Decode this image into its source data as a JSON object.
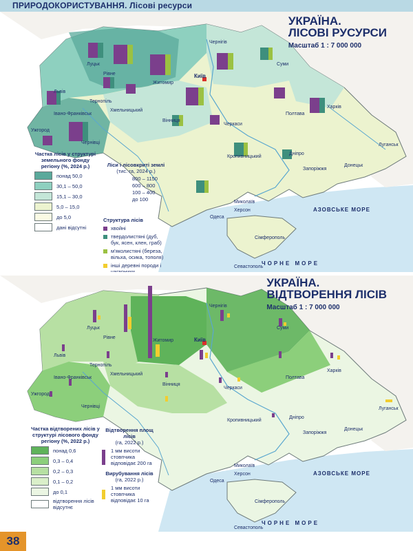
{
  "header": {
    "title": "ПРИРОДОКОРИСТУВАННЯ. Лісові ресурси"
  },
  "page_number": "38",
  "colors": {
    "forest_dark": "#5aa99b",
    "forest_mid": "#8ed0bf",
    "forest_light": "#c4e6d8",
    "forest_pale": "#ecf3cf",
    "forest_min": "#fbfbe4",
    "sea": "#cfe7f3",
    "regen_dark": "#5fb35a",
    "regen_mid": "#8ccf7b",
    "regen_light": "#b7e0a3",
    "regen_pale": "#daefc9",
    "regen_min": "#ebf6e3",
    "purple": "#7b3f8c",
    "yellow": "#f2cd2f"
  },
  "map1": {
    "title_line1": "УКРАЇНА.",
    "title_line2": "ЛІСОВІ РУСУРСИ",
    "scale": "Масштаб 1 : 7 000 000",
    "sea_label": "АЗОВСЬКЕ МОРЕ",
    "black_sea_label": "ЧОРНЕ МОРЕ",
    "capital": "Київ",
    "cities": [
      "Луцьк",
      "Рівне",
      "Житомир",
      "Чернігів",
      "Суми",
      "Львів",
      "Тернопіль",
      "Хмельницький",
      "Вінниця",
      "Черкаси",
      "Полтава",
      "Харків",
      "Луганськ",
      "Донецьк",
      "Запоріжжя",
      "Дніпро",
      "Кропивницький",
      "Миколаїв",
      "Херсон",
      "Одеса",
      "Ужгород",
      "Івано-Франківськ",
      "Чернівці",
      "Сімферополь",
      "Севастополь"
    ],
    "legend_share": {
      "title": "Частка лісів у структурі земельного фонду регіону (%, 2024 р.)",
      "items": [
        {
          "label": "понад 50,0",
          "color": "#5aa99b"
        },
        {
          "label": "30,1 – 50,0",
          "color": "#8ed0bf"
        },
        {
          "label": "15,1 – 30,0",
          "color": "#c4e6d8"
        },
        {
          "label": "5,0 – 15,0",
          "color": "#ecf3cf"
        },
        {
          "label": "до 5,0",
          "color": "#fbfbe4"
        },
        {
          "label": "дані відсутні",
          "color": "#ffffff"
        }
      ]
    },
    "legend_area": {
      "title": "Ліси і лісовкриті землі",
      "subtitle": "(тис. га, 2024 р.)",
      "items": [
        "800 – 1150",
        "600 – 800",
        "100 – 400",
        "до 100"
      ]
    },
    "legend_structure": {
      "title": "Структура лісів",
      "items": [
        {
          "label": "хвойні",
          "color": "#7b3f8c"
        },
        {
          "label": "твердолистяні (дуб, бук, ясен, клен, граб)",
          "color": "#3e8f7d"
        },
        {
          "label": "м'яколистяні (береза, вільха, осика, тополя)",
          "color": "#9bc142"
        },
        {
          "label": "інші деревні породи і чагарники",
          "color": "#f2cd2f"
        }
      ]
    }
  },
  "map2": {
    "title_line1": "УКРАЇНА.",
    "title_line2": "ВІДТВОРЕННЯ ЛІСІВ",
    "scale": "Масштаб 1 : 7 000 000",
    "sea_label": "АЗОВСЬКЕ МОРЕ",
    "black_sea_label": "ЧОРНЕ МОРЕ",
    "capital": "Київ",
    "legend_share": {
      "title": "Частка відтворених лісів у структурі лісового фонду регіону (%, 2022 р.)",
      "items": [
        {
          "label": "понад 0,6",
          "color": "#5fb35a"
        },
        {
          "label": "0,3 – 0,4",
          "color": "#8ccf7b"
        },
        {
          "label": "0,2 – 0,3",
          "color": "#b7e0a3"
        },
        {
          "label": "0,1 – 0,2",
          "color": "#daefc9"
        },
        {
          "label": "до 0,1",
          "color": "#ebf6e3"
        },
        {
          "label": "відтворення лісів відсутнє",
          "color": "#ffffff"
        }
      ]
    },
    "legend_bars": {
      "title1": "Відтворення площ лісів",
      "sub1": "(га, 2022 р.)",
      "note1": "1 мм висоти стовпчика відповідає 200 га",
      "title2": "Вирубування лісів",
      "sub2": "(га, 2022 р.)",
      "note2": "1 мм висоти стовпчика відповідає 10 га"
    }
  }
}
